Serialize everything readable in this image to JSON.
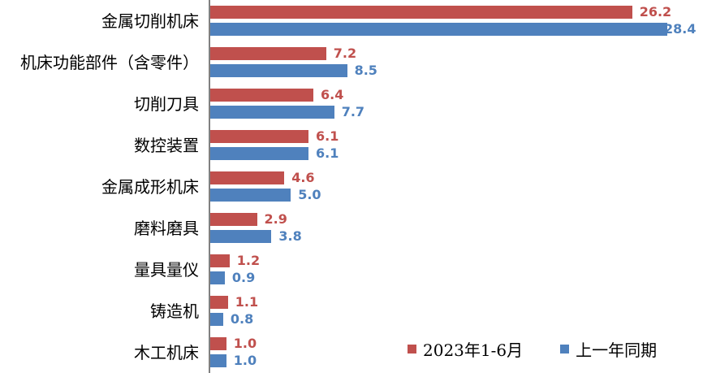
{
  "chart_data": {
    "type": "bar",
    "orientation": "horizontal",
    "title": "",
    "categories": [
      "金属切削机床",
      "机床功能部件（含零件）",
      "切削刀具",
      "数控装置",
      "金属成形机床",
      "磨料磨具",
      "量具量仪",
      "铸造机",
      "木工机床"
    ],
    "series": [
      {
        "name": "2023年1-6月",
        "color": "#C0504D",
        "values": [
          26.2,
          7.2,
          6.4,
          6.1,
          4.6,
          2.9,
          1.2,
          1.1,
          1.0
        ]
      },
      {
        "name": "上一年同期",
        "color": "#4F81BD",
        "values": [
          28.4,
          8.5,
          7.7,
          6.1,
          5.0,
          3.8,
          0.9,
          0.8,
          1.0
        ]
      }
    ],
    "xlim": [
      0,
      30.6
    ],
    "value_label_decimals": 1,
    "grid": false,
    "legend_position": "bottom-right",
    "axis_color": "#808080",
    "background_color": "#FFFFFF"
  }
}
